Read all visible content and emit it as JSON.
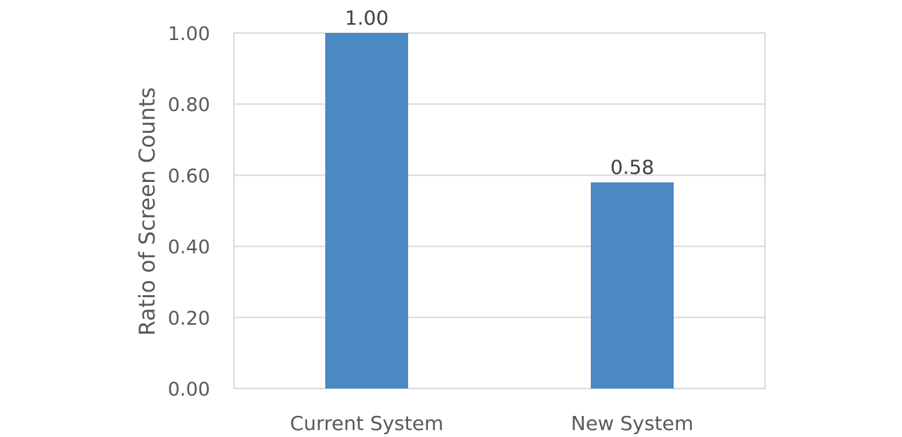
{
  "chart_data": {
    "type": "bar",
    "title": "",
    "xlabel": "",
    "ylabel": "Ratio of Screen Counts",
    "categories": [
      "Current System",
      "New System"
    ],
    "values": [
      1.0,
      0.58
    ],
    "data_labels": [
      "1.00",
      "0.58"
    ],
    "ylim": [
      0,
      1
    ],
    "yticks": [
      "0.00",
      "0.20",
      "0.40",
      "0.60",
      "0.80",
      "1.00"
    ],
    "grid": true,
    "legend": "none",
    "bar_color": "#4a89c2"
  }
}
